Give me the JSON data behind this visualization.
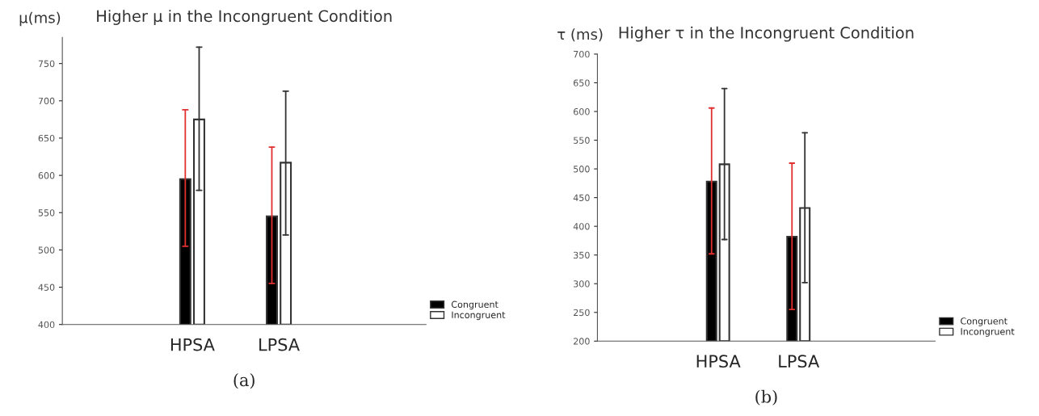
{
  "chart_data": [
    {
      "type": "bar",
      "title": "Higher μ in the Incongruent Condition",
      "ylabel": "μ(ms)",
      "categories": [
        "HPSA",
        "LPSA"
      ],
      "series": [
        {
          "name": "Congruent",
          "color": "#000000",
          "values": [
            595,
            545
          ],
          "errors": [
            [
              505,
              688
            ],
            [
              455,
              638
            ]
          ]
        },
        {
          "name": "Incongruent",
          "color": "#ffffff",
          "values": [
            675,
            617
          ],
          "errors": [
            [
              580,
              772
            ],
            [
              520,
              713
            ]
          ]
        }
      ],
      "ylim": [
        400,
        785
      ],
      "yticks": [
        400,
        450,
        500,
        550,
        600,
        650,
        700,
        750
      ],
      "grid": false,
      "legend": "bottom right",
      "annotations": [
        "(a)"
      ]
    },
    {
      "type": "bar",
      "title": "Higher τ in the Incongruent Condition",
      "ylabel": "τ (ms)",
      "categories": [
        "HPSA",
        "LPSA"
      ],
      "series": [
        {
          "name": "Congruent",
          "color": "#000000",
          "values": [
            478,
            382
          ],
          "errors": [
            [
              352,
              606
            ],
            [
              255,
              510
            ]
          ]
        },
        {
          "name": "Incongruent",
          "color": "#ffffff",
          "values": [
            508,
            432
          ],
          "errors": [
            [
              377,
              640
            ],
            [
              302,
              563
            ]
          ]
        }
      ],
      "ylim": [
        200,
        700
      ],
      "yticks": [
        200,
        250,
        300,
        350,
        400,
        450,
        500,
        550,
        600,
        650,
        700
      ],
      "grid": false,
      "legend": "bottom right",
      "annotations": [
        "(b)"
      ]
    }
  ]
}
